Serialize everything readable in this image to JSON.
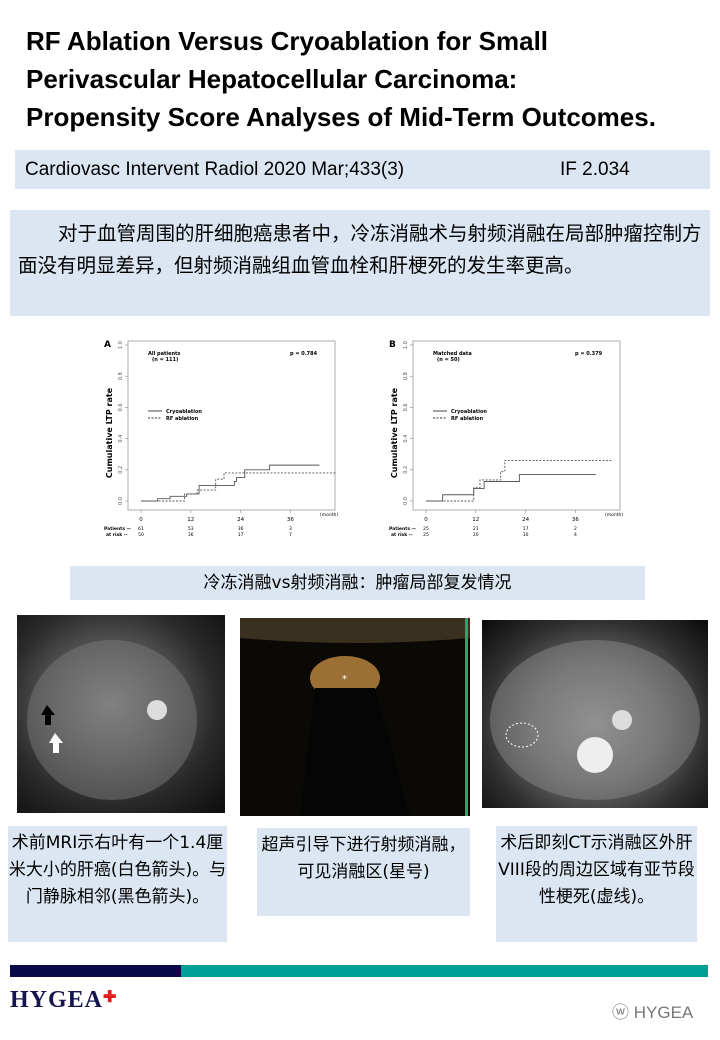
{
  "title": [
    "RF Ablation Versus Cryoablation for Small",
    "Perivascular Hepatocellular Carcinoma:",
    "Propensity Score Analyses of Mid-Term Outcomes."
  ],
  "citation": {
    "journal": "Cardiovasc Intervent Radiol 2020 Mar;433(3)",
    "impact": "IF 2.034"
  },
  "summary": "对于血管周围的肝细胞癌患者中，冷冻消融术与射频消融在局部肿瘤控制方面没有明显差异，但射频消融组血管血栓和肝梗死的发生率更高。",
  "figure_caption": "冷冻消融vs射频消融：肿瘤局部复发情况",
  "chart_data": [
    {
      "type": "line",
      "panel": "A",
      "group": "All patients",
      "n": "(n = 111)",
      "p": "p = 0.784",
      "ylabel": "Cumulative LTP rate",
      "xlabel": "(month)",
      "xticks": [
        0,
        12,
        24,
        36
      ],
      "yticks": [
        "0.0",
        "0.2",
        "0.4",
        "0.6",
        "0.8",
        "1.0"
      ],
      "ylim": [
        0,
        1
      ],
      "xlim": [
        0,
        48
      ],
      "series": [
        {
          "name": "Cryoablation",
          "style": "solid",
          "steps": [
            [
              0,
              0
            ],
            [
              4,
              0.015
            ],
            [
              7,
              0.03
            ],
            [
              11,
              0.045
            ],
            [
              14,
              0.1
            ],
            [
              19,
              0.1
            ],
            [
              22.5,
              0.125
            ],
            [
              23,
              0.15
            ],
            [
              25,
              0.2
            ],
            [
              31,
              0.23
            ],
            [
              43,
              0.23
            ]
          ]
        },
        {
          "name": "RF ablation",
          "style": "dashed",
          "steps": [
            [
              0,
              0
            ],
            [
              10.5,
              0.045
            ],
            [
              13.5,
              0.07
            ],
            [
              18,
              0.14
            ],
            [
              20,
              0.18
            ],
            [
              47,
              0.18
            ]
          ]
        }
      ],
      "risk": {
        "label1": "Patients",
        "label2": "at risk",
        "cryo": [
          "61",
          "53",
          "36",
          "3"
        ],
        "rf": [
          "50",
          "36",
          "17",
          "7"
        ]
      }
    },
    {
      "type": "line",
      "panel": "B",
      "group": "Matched data",
      "n": "(n = 50)",
      "p": "p = 0.379",
      "ylabel": "Cumulative LTP rate",
      "xlabel": "(month)",
      "xticks": [
        0,
        12,
        24,
        36
      ],
      "yticks": [
        "0.0",
        "0.2",
        "0.4",
        "0.6",
        "0.8",
        "1.0"
      ],
      "ylim": [
        0,
        1
      ],
      "xlim": [
        0,
        48
      ],
      "series": [
        {
          "name": "Cryoablation",
          "style": "solid",
          "steps": [
            [
              0,
              0
            ],
            [
              4,
              0.04
            ],
            [
              11.5,
              0.08
            ],
            [
              14,
              0.125
            ],
            [
              22.5,
              0.17
            ],
            [
              41,
              0.17
            ]
          ]
        },
        {
          "name": "RF ablation",
          "style": "dashed",
          "steps": [
            [
              0,
              0
            ],
            [
              11.5,
              0.085
            ],
            [
              13,
              0.135
            ],
            [
              18,
              0.19
            ],
            [
              19,
              0.26
            ],
            [
              45,
              0.26
            ]
          ]
        }
      ],
      "risk": {
        "label1": "Patients",
        "label2": "at risk",
        "cryo": [
          "25",
          "21",
          "17",
          "2"
        ],
        "rf": [
          "25",
          "20",
          "10",
          "4"
        ]
      }
    }
  ],
  "captions": [
    "术前MRI示右叶有一个1.4厘米大小的肝癌(白色箭头)。与门静脉相邻(黑色箭头)。",
    "超声引导下进行射频消融，可见消融区(星号)",
    "术后即刻CT示消融区外肝VIII段的周边区域有亚节段性梗死(虚线)。"
  ],
  "footer": {
    "logo": "HYGEA",
    "watermark": "HYGEA"
  },
  "colors": {
    "caption_bg": "#dce6f2",
    "bar_navy": "#0a0a4a",
    "bar_teal": "#00a096"
  }
}
